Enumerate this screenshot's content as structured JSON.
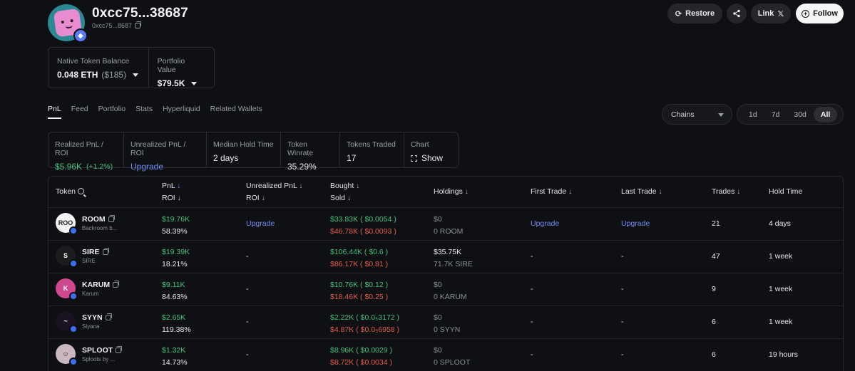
{
  "header": {
    "title": "0xcc75...38687",
    "address_short": "0xcc75...8687",
    "buttons": {
      "restore": "Restore",
      "link": "Link",
      "follow": "Follow"
    }
  },
  "balance": {
    "native_label": "Native Token Balance",
    "native_value": "0.048 ETH",
    "native_usd": "($185)",
    "portfolio_label": "Portfolio Value",
    "portfolio_value": "$79.5K"
  },
  "tabs": [
    "PnL",
    "Feed",
    "Portfolio",
    "Stats",
    "Hyperliquid",
    "Related Wallets"
  ],
  "filters": {
    "chains": "Chains",
    "ranges": [
      "1d",
      "7d",
      "30d",
      "All"
    ],
    "selected_range": "All"
  },
  "stats": {
    "realized_label": "Realized PnL / ROI",
    "realized_value": "$5.96K",
    "realized_roi": "(+1.2%)",
    "unrealized_label": "Unrealized PnL / ROI",
    "unrealized_value": "Upgrade",
    "median_label": "Median Hold Time",
    "median_value": "2 days",
    "winrate_label": "Token Winrate",
    "winrate_value": "35.29%",
    "traded_label": "Tokens Traded",
    "traded_value": "17",
    "chart_label": "Chart",
    "chart_value": "Show"
  },
  "table": {
    "headers": {
      "token": "Token",
      "pnl": "PnL",
      "roi": "ROI",
      "unrealized": "Unrealized PnL",
      "unrealized_roi": "ROI",
      "bought": "Bought",
      "sold": "Sold",
      "holdings": "Holdings",
      "first_trade": "First Trade",
      "last_trade": "Last Trade",
      "trades": "Trades",
      "hold_time": "Hold Time"
    },
    "rows": [
      {
        "symbol": "ROOM",
        "name": "Backroom b...",
        "icon_text": "ROO",
        "icon_bg": "#f2f2f2",
        "pnl": "$19.76K",
        "roi": "58.39%",
        "unrealized": "Upgrade",
        "bought": "$33.83K ( $0.0054 )",
        "sold": "$46.78K ( $0.0093 )",
        "holdings_usd": "$0",
        "holdings_amt": "0 ROOM",
        "first_trade": "Upgrade",
        "last_trade": "Upgrade",
        "trades": "21",
        "hold_time": "4 days"
      },
      {
        "symbol": "SIRE",
        "name": "SIRE",
        "icon_text": "S",
        "icon_bg": "#1c1c1f",
        "pnl": "$19.39K",
        "roi": "18.21%",
        "unrealized": "-",
        "bought": "$106.44K ( $0.6 )",
        "sold": "$86.17K ( $0.81 )",
        "holdings_usd": "$35.75K",
        "holdings_amt": "71.7K SIRE",
        "first_trade": "-",
        "last_trade": "-",
        "trades": "47",
        "hold_time": "1 week"
      },
      {
        "symbol": "KARUM",
        "name": "Karum",
        "icon_text": "K",
        "icon_bg": "#d0488f",
        "pnl": "$9.11K",
        "roi": "84.63%",
        "unrealized": "-",
        "bought": "$10.76K ( $0.12 )",
        "sold": "$18.46K ( $0.25 )",
        "holdings_usd": "$0",
        "holdings_amt": "0 KARUM",
        "first_trade": "-",
        "last_trade": "-",
        "trades": "9",
        "hold_time": "1 week"
      },
      {
        "symbol": "SYYN",
        "name": "Siyana",
        "icon_text": "~",
        "icon_bg": "#1a1220",
        "pnl": "$2.65K",
        "roi": "119.38%",
        "unrealized": "-",
        "bought": "$2.22K ( $0.0₅3172 )",
        "sold": "$4.87K ( $0.0₅6958 )",
        "holdings_usd": "$0",
        "holdings_amt": "0 SYYN",
        "first_trade": "-",
        "last_trade": "-",
        "trades": "6",
        "hold_time": "1 week"
      },
      {
        "symbol": "SPLOOT",
        "name": "Sploots by ...",
        "icon_text": "☺",
        "icon_bg": "#c9b8c0",
        "pnl": "$1.32K",
        "roi": "14.73%",
        "unrealized": "-",
        "bought": "$8.96K ( $0.0029 )",
        "sold": "$8.72K ( $0.0034 )",
        "holdings_usd": "$0",
        "holdings_amt": "0 SPLOOT",
        "first_trade": "-",
        "last_trade": "-",
        "trades": "6",
        "hold_time": "19 hours"
      }
    ]
  }
}
